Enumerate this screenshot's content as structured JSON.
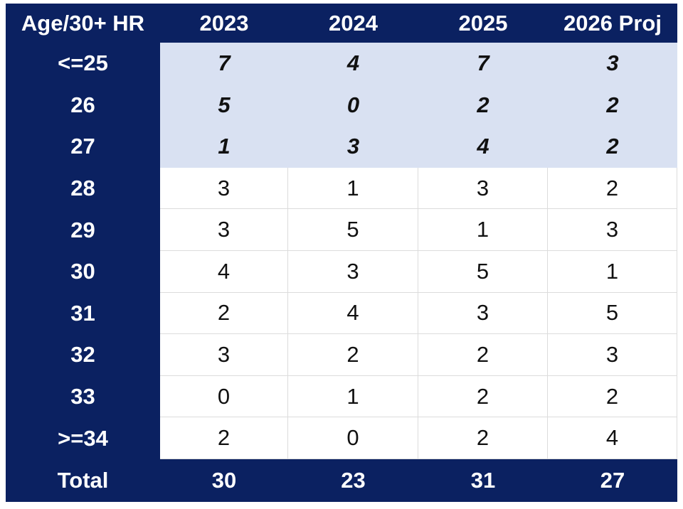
{
  "table": {
    "header": [
      "Age/30+ HR",
      "2023",
      "2024",
      "2025",
      "2026 Proj"
    ],
    "rows": [
      [
        "<=25",
        7,
        4,
        7,
        3
      ],
      [
        "26",
        5,
        0,
        2,
        2
      ],
      [
        "27",
        1,
        3,
        4,
        2
      ],
      [
        "28",
        3,
        1,
        3,
        2
      ],
      [
        "29",
        3,
        5,
        1,
        3
      ],
      [
        "30",
        4,
        3,
        5,
        1
      ],
      [
        "31",
        2,
        4,
        3,
        5
      ],
      [
        "32",
        3,
        2,
        2,
        3
      ],
      [
        "33",
        0,
        1,
        2,
        2
      ],
      [
        ">=34",
        2,
        0,
        2,
        4
      ]
    ],
    "total": [
      "Total",
      30,
      23,
      31,
      27
    ]
  }
}
